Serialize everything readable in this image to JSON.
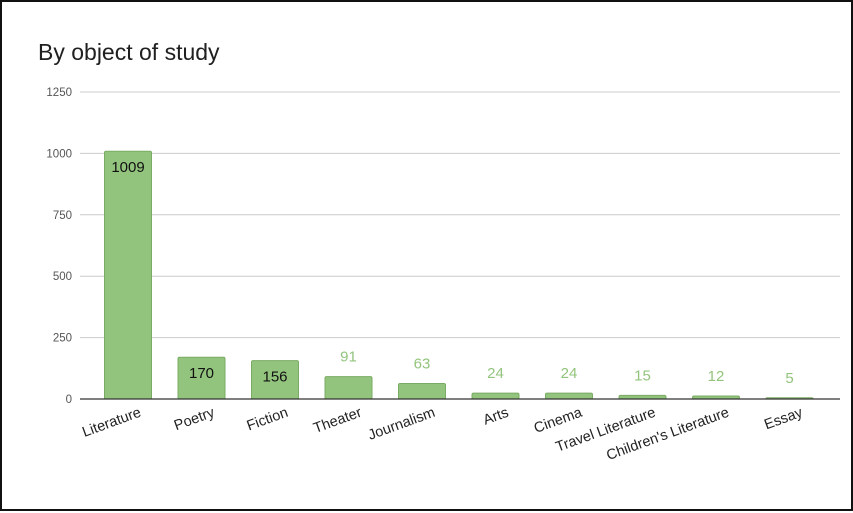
{
  "chart_data": {
    "type": "bar",
    "title": "By object of study",
    "xlabel": "",
    "ylabel": "",
    "ylim": [
      0,
      1250
    ],
    "yticks": [
      0,
      250,
      500,
      750,
      1000,
      1250
    ],
    "grid": true,
    "legend": "none",
    "bar_color": "#93c47d",
    "bar_edge_color": "#7aab64",
    "label_inside_color": "#111111",
    "label_outside_color": "#93c47d",
    "categories": [
      "Literature",
      "Poetry",
      "Fiction",
      "Theater",
      "Journalism",
      "Arts",
      "Cinema",
      "Travel Literature",
      "Children's Literature",
      "Essay"
    ],
    "values": [
      1009,
      170,
      156,
      91,
      63,
      24,
      24,
      15,
      12,
      5
    ]
  }
}
